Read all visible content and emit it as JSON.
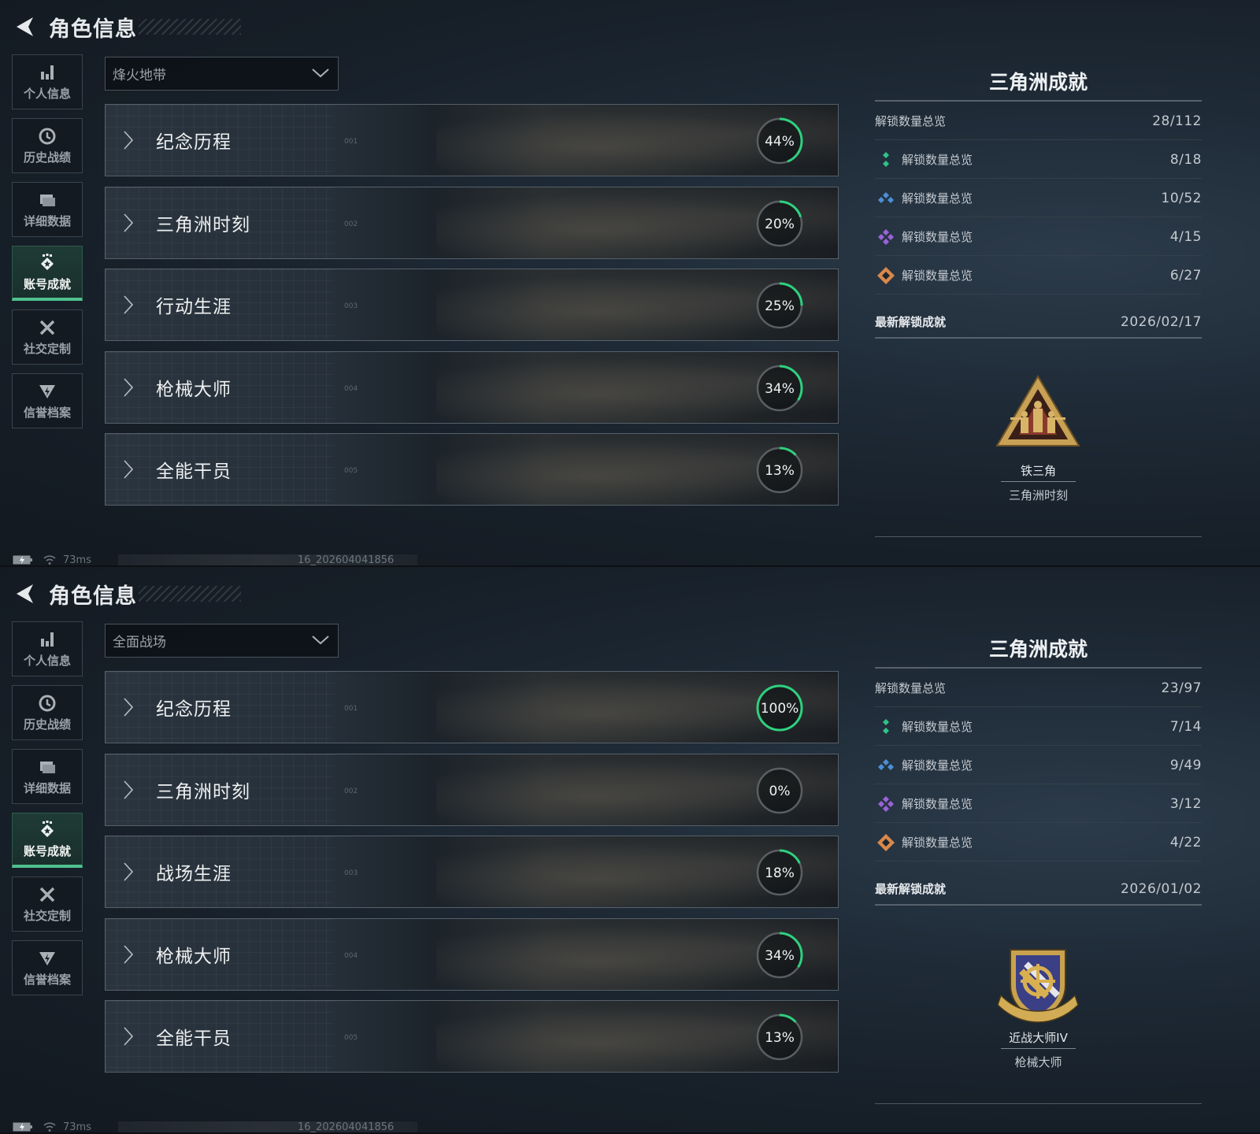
{
  "colors": {
    "accent": "#4fc08f",
    "ring_progress": "#2fd07f",
    "ring_track": "#5a5f63",
    "gem_green": "#2fc48a",
    "gem_blue": "#4c8fd6",
    "gem_purple": "#9a62d8",
    "gem_orange": "#d9884a"
  },
  "panels": [
    {
      "header": {
        "title": "角色信息",
        "back_icon": "back-arrow-icon"
      },
      "sidebar": [
        {
          "label": "个人信息",
          "icon": "bar-chart-icon"
        },
        {
          "label": "历史战绩",
          "icon": "history-clock-icon"
        },
        {
          "label": "详细数据",
          "icon": "folder-icon"
        },
        {
          "label": "账号成就",
          "icon": "achievement-badge-icon",
          "active": true
        },
        {
          "label": "社交定制",
          "icon": "tools-icon"
        },
        {
          "label": "信誉档案",
          "icon": "credit-shield-icon"
        }
      ],
      "mode_select": {
        "value": "烽火地带"
      },
      "categories": [
        {
          "name": "纪念历程",
          "index": "001",
          "percent": 44
        },
        {
          "name": "三角洲时刻",
          "index": "002",
          "percent": 20
        },
        {
          "name": "行动生涯",
          "index": "003",
          "percent": 25
        },
        {
          "name": "枪械大师",
          "index": "004",
          "percent": 34
        },
        {
          "name": "全能干员",
          "index": "005",
          "percent": 13
        }
      ],
      "summary": {
        "title": "三角洲成就",
        "total": {
          "label": "解锁数量总览",
          "value": "28/112"
        },
        "tiers": [
          {
            "icon": "gem-green",
            "label": "解锁数量总览",
            "value": "8/18"
          },
          {
            "icon": "gem-blue",
            "label": "解锁数量总览",
            "value": "10/52"
          },
          {
            "icon": "gem-purple",
            "label": "解锁数量总览",
            "value": "4/15"
          },
          {
            "icon": "gem-orange",
            "label": "解锁数量总览",
            "value": "6/27"
          }
        ],
        "latest": {
          "label": "最新解锁成就",
          "date": "2026/02/17",
          "name": "铁三角",
          "category": "三角洲时刻",
          "badge": "triangle-soldiers-badge"
        }
      },
      "status": {
        "ping": "73ms",
        "build": "16_202604041856"
      }
    },
    {
      "header": {
        "title": "角色信息",
        "back_icon": "back-arrow-icon"
      },
      "sidebar": [
        {
          "label": "个人信息",
          "icon": "bar-chart-icon"
        },
        {
          "label": "历史战绩",
          "icon": "history-clock-icon"
        },
        {
          "label": "详细数据",
          "icon": "folder-icon"
        },
        {
          "label": "账号成就",
          "icon": "achievement-badge-icon",
          "active": true
        },
        {
          "label": "社交定制",
          "icon": "tools-icon"
        },
        {
          "label": "信誉档案",
          "icon": "credit-shield-icon"
        }
      ],
      "mode_select": {
        "value": "全面战场"
      },
      "categories": [
        {
          "name": "纪念历程",
          "index": "001",
          "percent": 100
        },
        {
          "name": "三角洲时刻",
          "index": "002",
          "percent": 0
        },
        {
          "name": "战场生涯",
          "index": "003",
          "percent": 18
        },
        {
          "name": "枪械大师",
          "index": "004",
          "percent": 34
        },
        {
          "name": "全能干员",
          "index": "005",
          "percent": 13
        }
      ],
      "summary": {
        "title": "三角洲成就",
        "total": {
          "label": "解锁数量总览",
          "value": "23/97"
        },
        "tiers": [
          {
            "icon": "gem-green",
            "label": "解锁数量总览",
            "value": "7/14"
          },
          {
            "icon": "gem-blue",
            "label": "解锁数量总览",
            "value": "9/49"
          },
          {
            "icon": "gem-purple",
            "label": "解锁数量总览",
            "value": "3/12"
          },
          {
            "icon": "gem-orange",
            "label": "解锁数量总览",
            "value": "4/22"
          }
        ],
        "latest": {
          "label": "最新解锁成就",
          "date": "2026/01/02",
          "name": "近战大师IV",
          "category": "枪械大师",
          "badge": "melee-shield-badge"
        }
      },
      "status": {
        "ping": "73ms",
        "build": "16_202604041856"
      }
    }
  ]
}
